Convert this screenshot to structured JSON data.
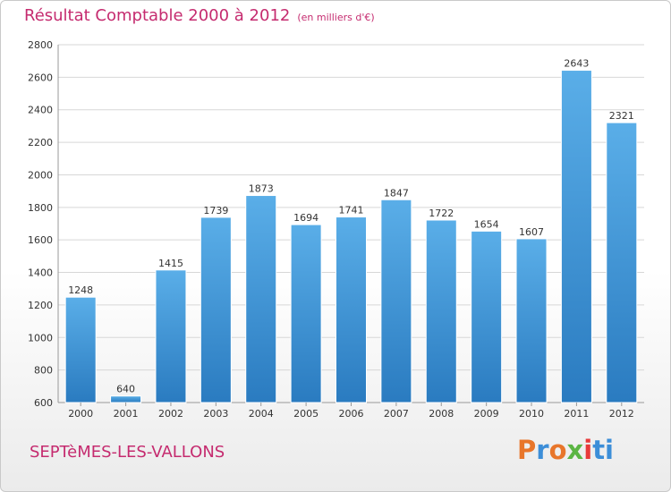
{
  "header": {
    "title": "Résultat Comptable 2000 à 2012",
    "subtitle": "(en milliers d'€)"
  },
  "footer": {
    "city": "SEPTèMES-LES-VALLONS",
    "brand": [
      "P",
      "r",
      "o",
      "x",
      "i",
      "ti"
    ]
  },
  "colors": {
    "bar_top": "#5aaee8",
    "bar_bottom": "#2a7bc0",
    "grid": "#d7d7d7",
    "accent": "#c52b6f"
  },
  "chart_data": {
    "type": "bar",
    "title": "Résultat Comptable 2000 à 2012",
    "subtitle": "(en milliers d'€)",
    "categories": [
      "2000",
      "2001",
      "2002",
      "2003",
      "2004",
      "2005",
      "2006",
      "2007",
      "2008",
      "2009",
      "2010",
      "2011",
      "2012"
    ],
    "values": [
      1248,
      640,
      1415,
      1739,
      1873,
      1694,
      1741,
      1847,
      1722,
      1654,
      1607,
      2643,
      2321
    ],
    "ylim": [
      600,
      2800
    ],
    "yticks": [
      600,
      800,
      1000,
      1200,
      1400,
      1600,
      1800,
      2000,
      2200,
      2400,
      2600,
      2800
    ],
    "xlabel": "",
    "ylabel": "",
    "grid": true
  }
}
